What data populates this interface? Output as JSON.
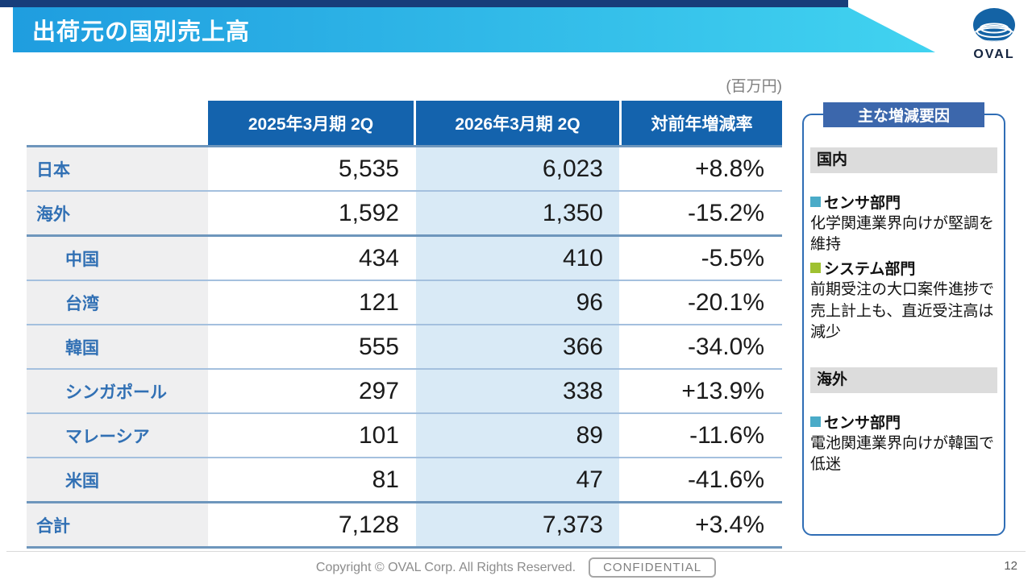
{
  "slide": {
    "title": "出荷元の国別売上高",
    "unit_label": "(百万円)",
    "page_number": "12"
  },
  "logo": {
    "text": "OVAL"
  },
  "colors": {
    "banner_left": "#1f9ddf",
    "banner_right": "#41d3f0",
    "header_blue": "#1463ad",
    "panel_blue": "#3c67ac",
    "highlight_column": "#d9eaf6",
    "sensor_bullet": "#4aabc8",
    "system_bullet": "#9fc131"
  },
  "table": {
    "headers": [
      "2025年3月期 2Q",
      "2026年3月期 2Q",
      "対前年増減率"
    ],
    "rows": [
      {
        "label": "日本",
        "indent": false,
        "thick_top": true,
        "total": false,
        "v2025": "5,535",
        "v2026": "6,023",
        "rate": "+8.8%"
      },
      {
        "label": "海外",
        "indent": false,
        "thick_top": false,
        "total": false,
        "v2025": "1,592",
        "v2026": "1,350",
        "rate": "-15.2%"
      },
      {
        "label": "中国",
        "indent": true,
        "thick_top": true,
        "total": false,
        "v2025": "434",
        "v2026": "410",
        "rate": "-5.5%"
      },
      {
        "label": "台湾",
        "indent": true,
        "thick_top": false,
        "total": false,
        "v2025": "121",
        "v2026": "96",
        "rate": "-20.1%"
      },
      {
        "label": "韓国",
        "indent": true,
        "thick_top": false,
        "total": false,
        "v2025": "555",
        "v2026": "366",
        "rate": "-34.0%"
      },
      {
        "label": "シンガポール",
        "indent": true,
        "thick_top": false,
        "total": false,
        "v2025": "297",
        "v2026": "338",
        "rate": "+13.9%"
      },
      {
        "label": "マレーシア",
        "indent": true,
        "thick_top": false,
        "total": false,
        "v2025": "101",
        "v2026": "89",
        "rate": "-11.6%"
      },
      {
        "label": "米国",
        "indent": true,
        "thick_top": false,
        "total": false,
        "v2025": "81",
        "v2026": "47",
        "rate": "-41.6%"
      },
      {
        "label": "合計",
        "indent": false,
        "thick_top": true,
        "total": true,
        "v2025": "7,128",
        "v2026": "7,373",
        "rate": "+3.4%"
      }
    ]
  },
  "factors_panel": {
    "title": "主な増減要因",
    "sections": [
      {
        "heading": "国内",
        "items": [
          {
            "bullet_color": "#4aabc8",
            "dept": "センサ部門",
            "desc": "化学関連業界向けが堅調を維持"
          },
          {
            "bullet_color": "#9fc131",
            "dept": "システム部門",
            "desc": "前期受注の大口案件進捗で売上計上も、直近受注高は減少"
          }
        ]
      },
      {
        "heading": "海外",
        "items": [
          {
            "bullet_color": "#4aabc8",
            "dept": "センサ部門",
            "desc": "電池関連業界向けが韓国で低迷"
          }
        ]
      }
    ]
  },
  "footer": {
    "copyright": "Copyright © OVAL Corp. All Rights Reserved.",
    "confidential": "CONFIDENTIAL"
  }
}
